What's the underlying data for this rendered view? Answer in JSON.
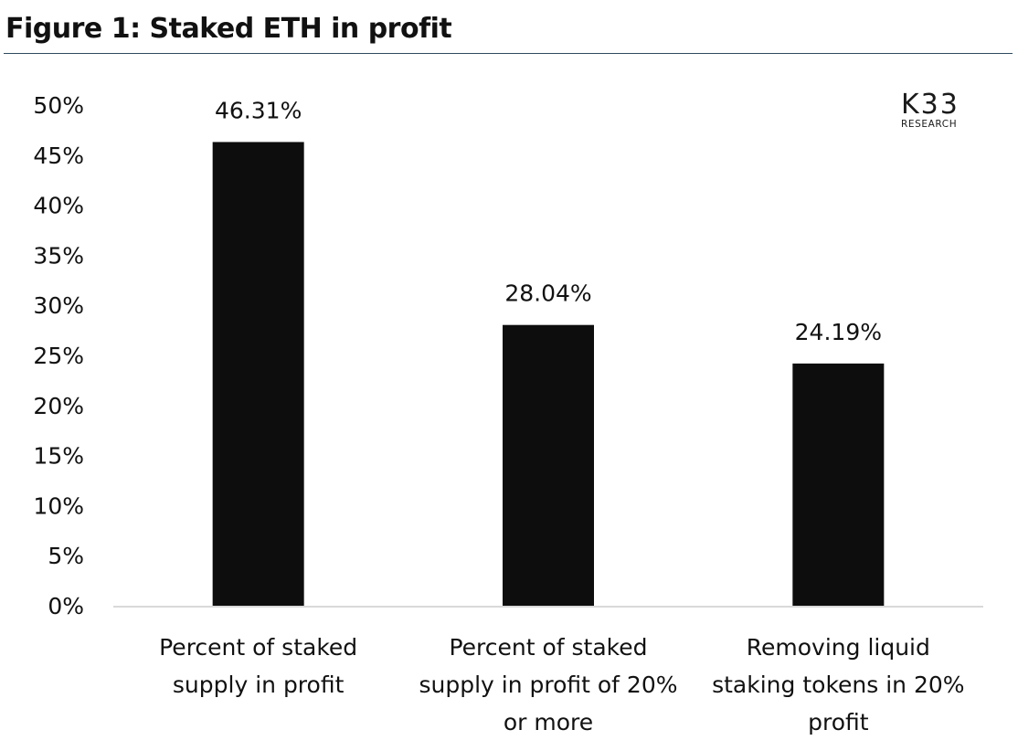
{
  "figure": {
    "title": "Figure 1: Staked ETH in profit"
  },
  "logo": {
    "mark": "K33",
    "subtitle": "RESEARCH"
  },
  "colors": {
    "bar": "#0d0d0d",
    "axis": "#d9d9d9",
    "title_rule": "#2e4a5e",
    "text": "#111111"
  },
  "chart_data": {
    "type": "bar",
    "title": "Figure 1: Staked ETH in profit",
    "xlabel": "",
    "ylabel": "",
    "categories": [
      "Percent of staked supply in profit",
      "Percent of staked supply in profit of 20% or more",
      "Removing liquid staking tokens in 20% profit"
    ],
    "values": [
      46.31,
      28.04,
      24.19
    ],
    "data_labels": [
      "46.31%",
      "28.04%",
      "24.19%"
    ],
    "ylim": [
      0,
      50
    ],
    "yticks": [
      0,
      5,
      10,
      15,
      20,
      25,
      30,
      35,
      40,
      45,
      50
    ],
    "ytick_labels": [
      "0%",
      "5%",
      "10%",
      "15%",
      "20%",
      "25%",
      "30%",
      "35%",
      "40%",
      "45%",
      "50%"
    ],
    "grid": false,
    "legend": "none"
  }
}
